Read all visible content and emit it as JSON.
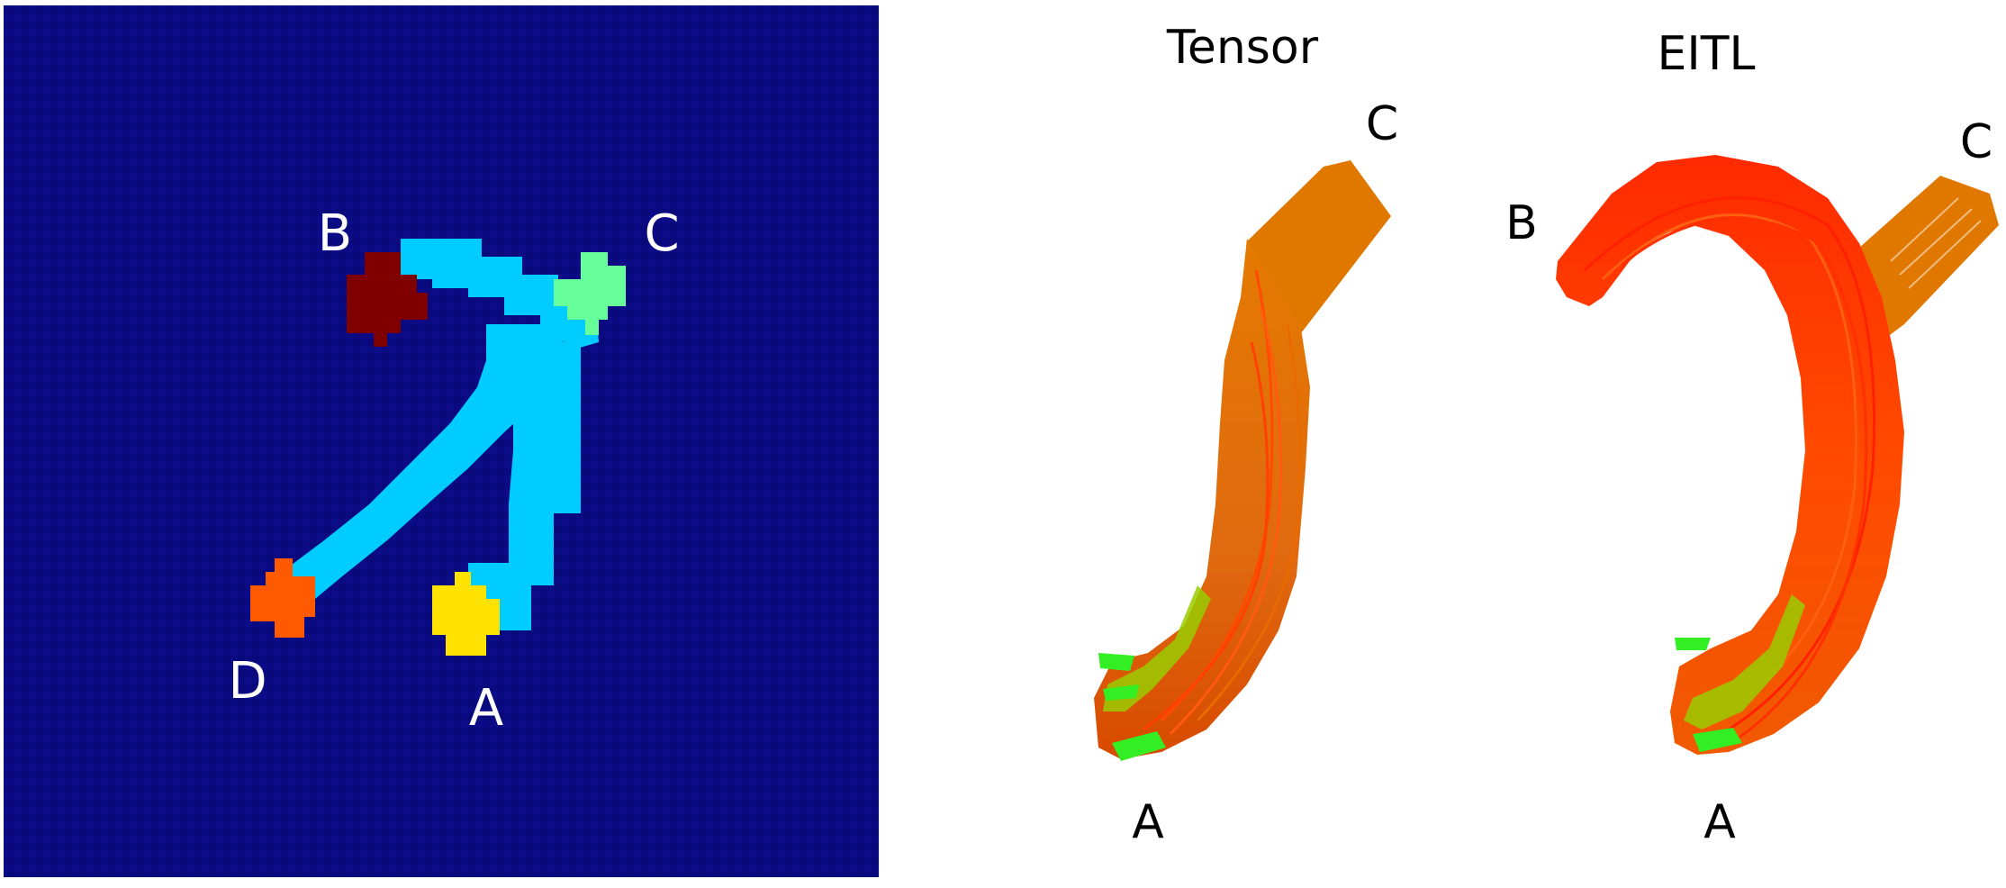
{
  "left_panel": {
    "labels": {
      "a": "A",
      "b": "B",
      "c": "C",
      "d": "D"
    },
    "colors": {
      "background": "#0a0a82",
      "tract": "#00ccff",
      "roi_a": "#ffe200",
      "roi_b": "#800000",
      "roi_c": "#66ff99",
      "roi_d": "#ff5a00"
    }
  },
  "tensor_panel": {
    "title": "Tensor",
    "labels": {
      "a": "A",
      "c": "C"
    },
    "colors": {
      "bundle": "#e07800",
      "core": "#ff4a00",
      "tip": "#33ee22"
    }
  },
  "eitl_panel": {
    "title": "EITL",
    "labels": {
      "a": "A",
      "b": "B",
      "c": "C"
    },
    "colors": {
      "bundle": "#ff4500",
      "branch": "#e07800",
      "tip": "#33ee22"
    }
  }
}
